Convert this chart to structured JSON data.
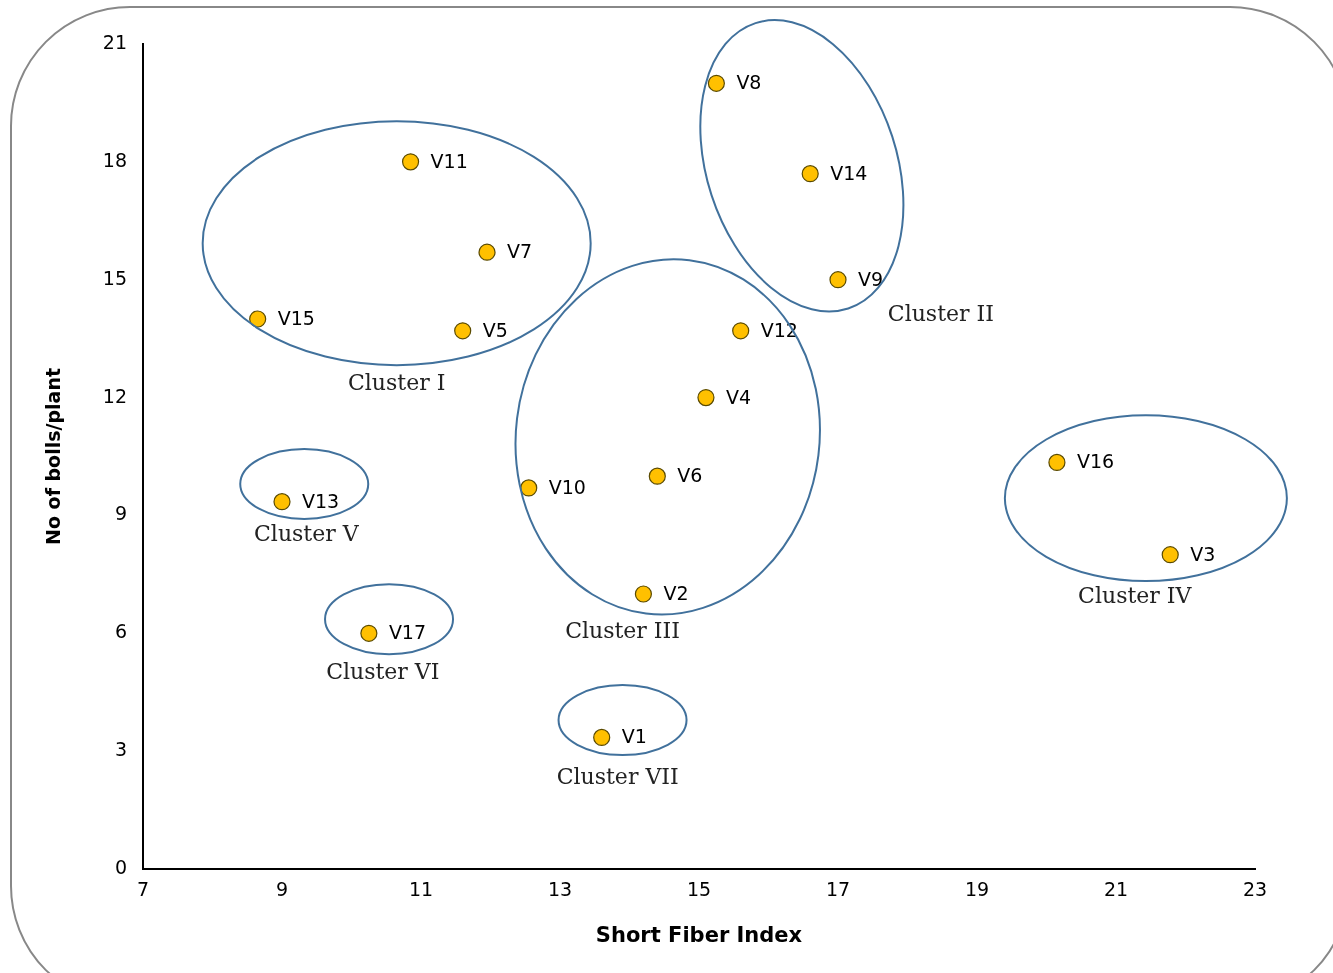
{
  "chart_data": {
    "type": "scatter",
    "xlabel": "Short Fiber Index",
    "ylabel": "No of bolls/plant",
    "xlim": [
      7,
      23
    ],
    "xticks": [
      7,
      9,
      11,
      13,
      15,
      17,
      19,
      21,
      23
    ],
    "ylim": [
      0,
      21
    ],
    "yticks": [
      0,
      3,
      6,
      9,
      12,
      15,
      18,
      21
    ],
    "grid": false,
    "legend": false,
    "marker": "circle",
    "series": [
      {
        "color": "#ffc000",
        "x": [
          13.6,
          14.2,
          21.78,
          15.1,
          11.6,
          14.4,
          11.95,
          15.25,
          17,
          12.55,
          10.85,
          15.6,
          9,
          16.6,
          8.65,
          20.15,
          10.25
        ],
        "values": [
          3.35,
          7,
          8,
          12,
          13.7,
          10,
          15.7,
          20,
          15,
          9.7,
          18,
          13.7,
          9.35,
          17.7,
          14,
          10.35,
          6
        ],
        "value_labels": [
          "V1",
          "V2",
          "V3",
          "V4",
          "V5",
          "V6",
          "V7",
          "V8",
          "V9",
          "V10",
          "V11",
          "V12",
          "V13",
          "V14",
          "V15",
          "V16",
          "V17"
        ]
      }
    ],
    "annotations": [
      "Cluster I",
      "Cluster II",
      "Cluster III",
      "Cluster IV",
      "Cluster V",
      "Cluster VI",
      "Cluster VII"
    ]
  }
}
